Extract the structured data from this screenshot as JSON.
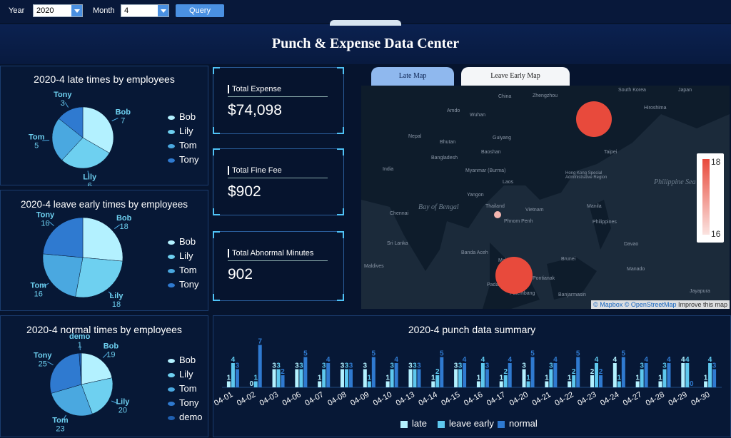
{
  "filters": {
    "year_label": "Year",
    "year_value": "2020",
    "month_label": "Month",
    "month_value": "4",
    "query_label": "Query"
  },
  "page_title": "Punch & Expense Data Center",
  "late_panel": {
    "title": "2020-4 late times by employees",
    "slices": [
      {
        "name": "Bob",
        "value": 7,
        "color": "#b3f1ff"
      },
      {
        "name": "Lily",
        "value": 6,
        "color": "#6ed0f0"
      },
      {
        "name": "Tom",
        "value": 5,
        "color": "#4aa8e0"
      },
      {
        "name": "Tony",
        "value": 3,
        "color": "#2f7ad0"
      }
    ],
    "legend": [
      "Bob",
      "Lily",
      "Tom",
      "Tony"
    ]
  },
  "leave_panel": {
    "title": "2020-4 leave early times by employees",
    "slices": [
      {
        "name": "Bob",
        "value": 18,
        "color": "#b3f1ff"
      },
      {
        "name": "Lily",
        "value": 18,
        "color": "#6ed0f0"
      },
      {
        "name": "Tom",
        "value": 16,
        "color": "#4aa8e0"
      },
      {
        "name": "Tony",
        "value": 16,
        "color": "#2f7ad0"
      }
    ],
    "legend": [
      "Bob",
      "Lily",
      "Tom",
      "Tony"
    ]
  },
  "normal_panel": {
    "title": "2020-4 normal times by employees",
    "slices": [
      {
        "name": "Bob",
        "value": 19,
        "color": "#b3f1ff"
      },
      {
        "name": "Lily",
        "value": 20,
        "color": "#6ed0f0"
      },
      {
        "name": "Tom",
        "value": 23,
        "color": "#4aa8e0"
      },
      {
        "name": "Tony",
        "value": 25,
        "color": "#2f7ad0"
      },
      {
        "name": "demo",
        "value": 1,
        "color": "#1f5fb0"
      }
    ],
    "legend": [
      "Bob",
      "Lily",
      "Tom",
      "Tony",
      "demo"
    ]
  },
  "cards": {
    "expense_label": "Total Expense",
    "expense_value": "$74,098",
    "fine_label": "Total Fine Fee",
    "fine_value": "$902",
    "abnormal_label": "Total Abnormal Minutes",
    "abnormal_value": "902"
  },
  "map": {
    "tab_late": "Late Map",
    "tab_leave": "Leave Early Map",
    "scale_max": "18",
    "scale_min": "16",
    "attribution_mapbox": "© Mapbox",
    "attribution_osm": "© OpenStreetMap",
    "attribution_improve": "Improve this map",
    "places": [
      "China",
      "Zhengzhou",
      "South Korea",
      "Japan",
      "Hiroshima",
      "Amdo",
      "Wuhan",
      "Nepal",
      "Bhutan",
      "Guiyang",
      "Bangladesh",
      "Baoshan",
      "India",
      "Myanmar (Burma)",
      "Laos",
      "Hong Kong Special Administrative Region",
      "Taipei",
      "Philippine Sea",
      "Yangon",
      "Thailand",
      "Vietnam",
      "Manila",
      "Bay of Bengal",
      "Chennai",
      "Phnom Penh",
      "Philippines",
      "Sri Lanka",
      "Davao",
      "Banda Aceh",
      "Brunei",
      "Maldives",
      "Malaysia",
      "Pontianak",
      "Manado",
      "Padang",
      "Palembang",
      "Banjarmasin",
      "Jayapura"
    ]
  },
  "summary": {
    "title": "2020-4 punch data summary",
    "legend": [
      "late",
      "leave early",
      "normal"
    ]
  },
  "chart_data": {
    "type": "bar",
    "title": "2020-4 punch data summary",
    "categories": [
      "04-01",
      "04-02",
      "04-03",
      "04-06",
      "04-07",
      "04-08",
      "04-09",
      "04-10",
      "04-13",
      "04-14",
      "04-15",
      "04-16",
      "04-17",
      "04-20",
      "04-21",
      "04-22",
      "04-23",
      "04-24",
      "04-27",
      "04-28",
      "04-29",
      "04-30"
    ],
    "series": [
      {
        "name": "late",
        "color": "#b3f1ff",
        "values": [
          1,
          0,
          3,
          3,
          1,
          3,
          3,
          1,
          3,
          1,
          3,
          1,
          1,
          3,
          1,
          1,
          2,
          4,
          1,
          1,
          4,
          1
        ]
      },
      {
        "name": "leave early",
        "color": "#5ec8ee",
        "values": [
          4,
          1,
          3,
          3,
          3,
          3,
          1,
          3,
          3,
          2,
          3,
          4,
          2,
          1,
          3,
          2,
          4,
          1,
          3,
          3,
          4,
          4
        ]
      },
      {
        "name": "normal",
        "color": "#2f7ad0",
        "values": [
          3,
          7,
          2,
          5,
          4,
          3,
          5,
          4,
          3,
          5,
          4,
          3,
          4,
          5,
          4,
          5,
          2,
          5,
          4,
          4,
          0,
          3
        ]
      }
    ]
  },
  "colors": {
    "background": "#06142e",
    "accent": "#4a90e2",
    "panel_border": "#1a3c6e",
    "map_marker": "#e84a3c"
  }
}
